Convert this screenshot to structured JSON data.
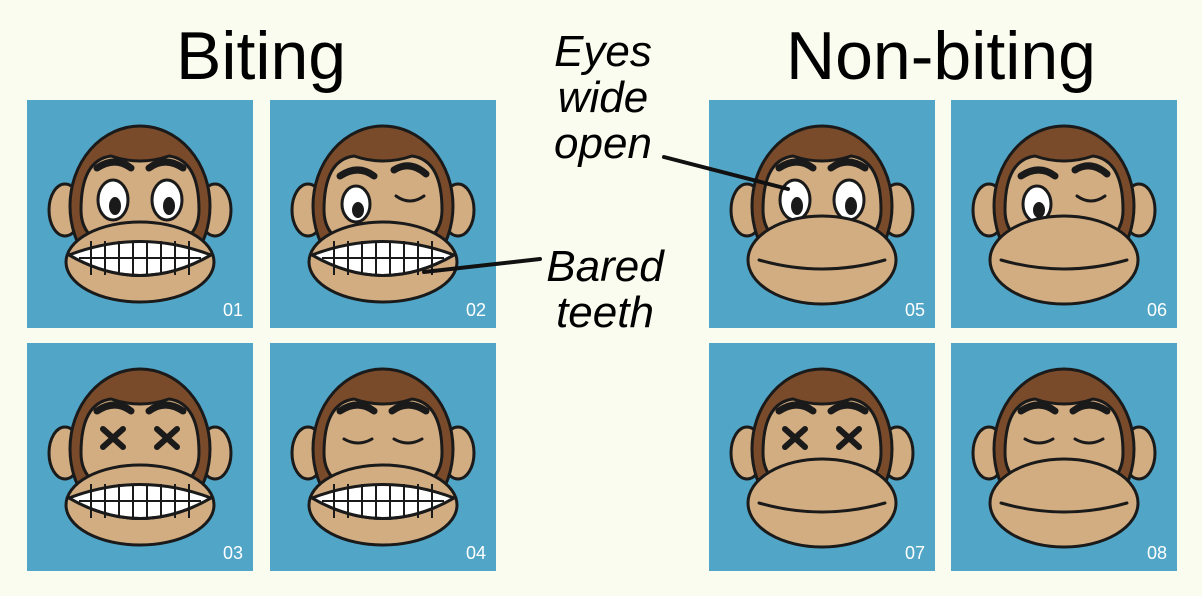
{
  "headings": {
    "biting": "Biting",
    "nonbiting": "Non-biting"
  },
  "callouts": {
    "eyes": [
      "Eyes",
      "wide",
      "open"
    ],
    "teeth": [
      "Bared",
      "teeth"
    ]
  },
  "colors": {
    "background": "#fbfcf0",
    "tile": "#51a5c7",
    "fur": "#7a4b2a",
    "skin": "#d2ad82",
    "outline": "#1a1a1a",
    "teeth": "#ffffff"
  },
  "faces": [
    {
      "id": "01",
      "group": "biting",
      "eyes": "open-wide",
      "mouth": "bared-teeth"
    },
    {
      "id": "02",
      "group": "biting",
      "eyes": "wink",
      "mouth": "bared-teeth"
    },
    {
      "id": "03",
      "group": "biting",
      "eyes": "crossed-x",
      "mouth": "bared-teeth"
    },
    {
      "id": "04",
      "group": "biting",
      "eyes": "closed",
      "mouth": "bared-teeth"
    },
    {
      "id": "05",
      "group": "nonbiting",
      "eyes": "open-wide",
      "mouth": "closed-smile"
    },
    {
      "id": "06",
      "group": "nonbiting",
      "eyes": "wink",
      "mouth": "closed-smile"
    },
    {
      "id": "07",
      "group": "nonbiting",
      "eyes": "crossed-x",
      "mouth": "closed-smile"
    },
    {
      "id": "08",
      "group": "nonbiting",
      "eyes": "closed",
      "mouth": "closed-smile"
    }
  ]
}
